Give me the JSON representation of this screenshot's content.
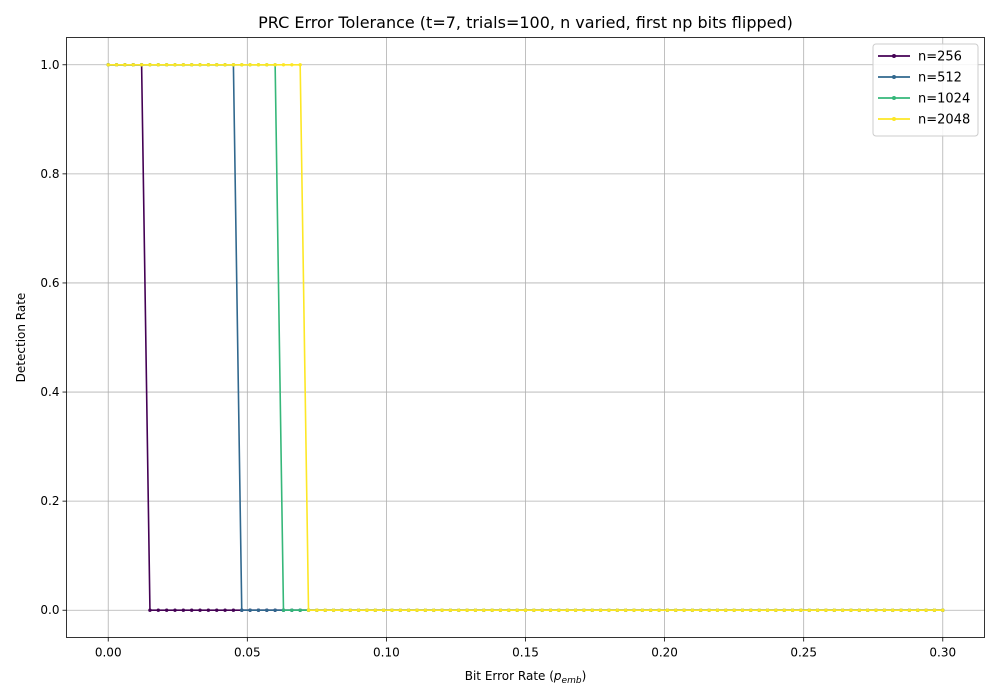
{
  "chart_data": {
    "type": "line",
    "title": "PRC Error Tolerance (t=7, trials=100, n varied, first np bits flipped)",
    "xlabel": "Bit Error Rate (",
    "xlabel_symbol": "p",
    "xlabel_subscript": "emb",
    "xlabel_suffix": ")",
    "ylabel": "Detection Rate",
    "xlim": [
      -0.015,
      0.315
    ],
    "ylim": [
      -0.05,
      1.05
    ],
    "xticks": [
      0.0,
      0.05,
      0.1,
      0.15,
      0.2,
      0.25,
      0.3
    ],
    "xtick_labels": [
      "0.00",
      "0.05",
      "0.10",
      "0.15",
      "0.20",
      "0.25",
      "0.30"
    ],
    "yticks": [
      0.0,
      0.2,
      0.4,
      0.6,
      0.8,
      1.0
    ],
    "ytick_labels": [
      "0.0",
      "0.2",
      "0.4",
      "0.6",
      "0.8",
      "1.0"
    ],
    "grid": true,
    "legend_position": "top-right",
    "x_range": {
      "start": 0.0,
      "end": 0.3,
      "step": 0.003
    },
    "series": [
      {
        "name": "n=256",
        "color": "#440154",
        "threshold": 0.012
      },
      {
        "name": "n=512",
        "color": "#31688e",
        "threshold": 0.045
      },
      {
        "name": "n=1024",
        "color": "#35b779",
        "threshold": 0.06
      },
      {
        "name": "n=2048",
        "color": "#fde725",
        "threshold": 0.069
      }
    ],
    "series_rule": "value = 1.0 for x <= threshold, 0.0 otherwise"
  }
}
